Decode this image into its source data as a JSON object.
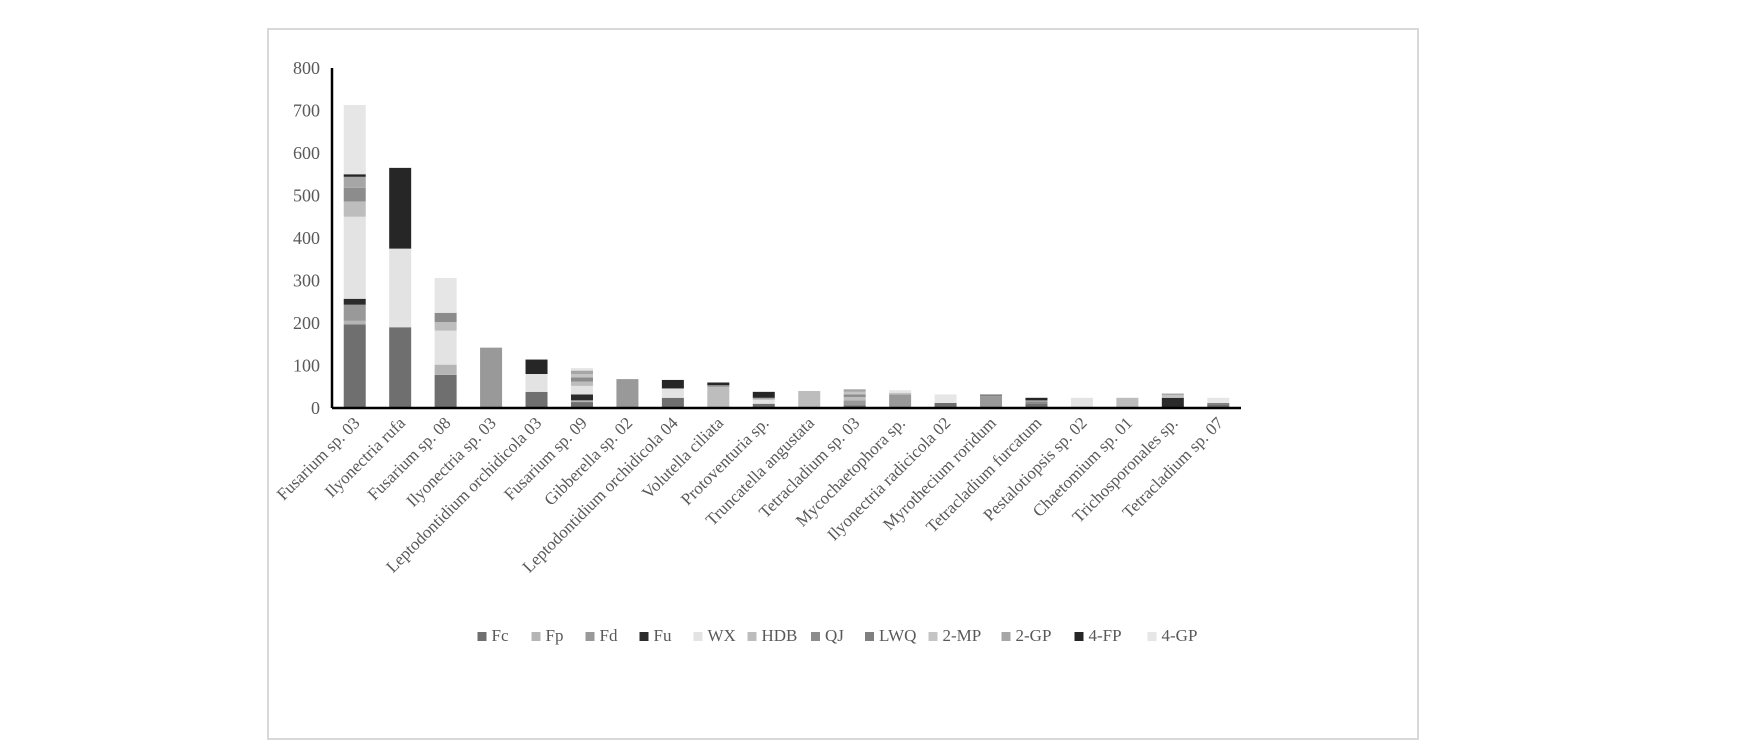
{
  "chart_data": {
    "type": "bar",
    "stacked": true,
    "categories": [
      "Fusarium sp. 03",
      "Ilyonectria rufa",
      "Fusarium sp. 08",
      "Ilyonectria sp. 03",
      "Leptodontidium orchidicola 03",
      "Fusarium sp. 09",
      "Gibberella sp. 02",
      "Leptodontidium orchidicola 04",
      "Volutella ciliata",
      "Protoventuria sp.",
      "Truncatella angustata",
      "Tetracladium sp. 03",
      "Mycochaetophora  sp.",
      "Ilyonectria radicicola 02",
      "Myrothecium roridum",
      "Tetracladium furcatum",
      "Pestalotiopsis sp. 02",
      "Chaetomium sp. 01",
      "Trichosporonales sp.",
      "Tetracladium sp. 07"
    ],
    "series": [
      {
        "name": "Fc",
        "color": "#6f6f6f",
        "values": [
          197,
          190,
          78,
          0,
          38,
          14,
          0,
          24,
          0,
          10,
          0,
          6,
          0,
          12,
          0,
          10,
          0,
          0,
          0,
          8
        ]
      },
      {
        "name": "Fp",
        "color": "#b5b5b5",
        "values": [
          8,
          0,
          24,
          0,
          0,
          4,
          0,
          0,
          0,
          0,
          0,
          0,
          0,
          0,
          0,
          0,
          0,
          0,
          0,
          0
        ]
      },
      {
        "name": "Fd",
        "color": "#999999",
        "values": [
          38,
          0,
          0,
          142,
          0,
          0,
          68,
          0,
          0,
          0,
          0,
          12,
          32,
          0,
          28,
          0,
          0,
          0,
          0,
          0
        ]
      },
      {
        "name": "Fu",
        "color": "#2b2b2b",
        "values": [
          14,
          0,
          0,
          0,
          0,
          14,
          0,
          0,
          0,
          0,
          0,
          0,
          0,
          0,
          0,
          0,
          0,
          0,
          24,
          0
        ]
      },
      {
        "name": "WX",
        "color": "#e3e3e3",
        "values": [
          193,
          185,
          80,
          0,
          42,
          20,
          0,
          22,
          0,
          10,
          0,
          0,
          0,
          0,
          0,
          0,
          24,
          0,
          0,
          0
        ]
      },
      {
        "name": "HDB",
        "color": "#bdbdbd",
        "values": [
          36,
          0,
          20,
          0,
          0,
          10,
          0,
          0,
          50,
          0,
          40,
          8,
          0,
          0,
          0,
          0,
          0,
          24,
          0,
          0
        ]
      },
      {
        "name": "QJ",
        "color": "#8c8c8c",
        "values": [
          32,
          0,
          22,
          0,
          0,
          10,
          0,
          0,
          4,
          0,
          0,
          6,
          0,
          0,
          0,
          0,
          0,
          0,
          0,
          0
        ]
      },
      {
        "name": "LWQ",
        "color": "#808080",
        "values": [
          0,
          0,
          0,
          0,
          0,
          0,
          0,
          0,
          0,
          0,
          0,
          0,
          0,
          0,
          4,
          4,
          0,
          0,
          0,
          4
        ]
      },
      {
        "name": "2-MP",
        "color": "#c4c4c4",
        "values": [
          0,
          0,
          0,
          0,
          0,
          8,
          0,
          0,
          0,
          0,
          0,
          6,
          4,
          0,
          0,
          0,
          0,
          0,
          6,
          0
        ]
      },
      {
        "name": "2-GP",
        "color": "#a6a6a6",
        "values": [
          26,
          0,
          0,
          0,
          0,
          8,
          0,
          0,
          0,
          4,
          0,
          6,
          0,
          0,
          0,
          4,
          0,
          0,
          4,
          0
        ]
      },
      {
        "name": "4-FP",
        "color": "#262626",
        "values": [
          6,
          190,
          0,
          0,
          34,
          0,
          0,
          20,
          6,
          14,
          0,
          0,
          0,
          0,
          0,
          6,
          0,
          0,
          0,
          0
        ]
      },
      {
        "name": "4-GP",
        "color": "#e6e6e6",
        "values": [
          163,
          0,
          82,
          0,
          0,
          6,
          0,
          0,
          0,
          0,
          0,
          0,
          6,
          20,
          0,
          0,
          0,
          0,
          0,
          12
        ]
      }
    ],
    "ylim": [
      0,
      800
    ],
    "yticks": [
      0,
      100,
      200,
      300,
      400,
      500,
      600,
      700,
      800
    ],
    "title": "",
    "xlabel": "",
    "ylabel": "",
    "grid": false,
    "legend_position": "bottom"
  }
}
